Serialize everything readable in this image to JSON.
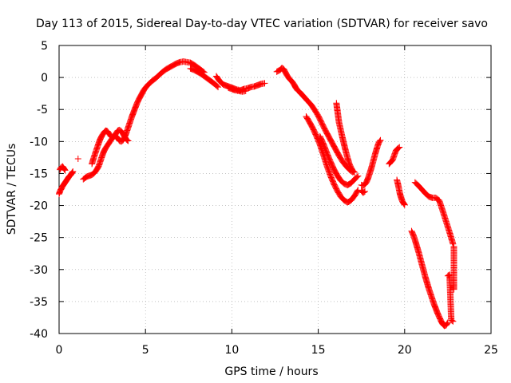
{
  "chart_data": {
    "type": "scatter",
    "title": "Day 113 of 2015, Sidereal Day-to-day VTEC variation (SDTVAR) for receiver savo",
    "xlabel": "GPS time / hours",
    "ylabel": "SDTVAR / TECUs",
    "xlim": [
      0,
      25
    ],
    "ylim": [
      -40,
      5
    ],
    "xticks": [
      0,
      5,
      10,
      15,
      20,
      25
    ],
    "yticks": [
      5,
      0,
      -5,
      -10,
      -15,
      -20,
      -25,
      -30,
      -35,
      -40
    ],
    "grid": true,
    "marker": "+",
    "color": "#ff0000",
    "series": [
      {
        "x": [
          0.0,
          0.05,
          0.1,
          0.15,
          0.2,
          0.25,
          0.3,
          0.35,
          0.4,
          0.45,
          0.5,
          0.55,
          0.6,
          0.65,
          0.7,
          0.75,
          0.8
        ],
        "y": [
          -18.2,
          -17.8,
          -17.5,
          -17.3,
          -17.0,
          -16.8,
          -16.6,
          -16.4,
          -16.2,
          -16.0,
          -15.8,
          -15.6,
          -15.4,
          -15.3,
          -15.1,
          -14.9,
          -14.7
        ]
      },
      {
        "x": [
          0.05,
          0.1,
          0.15,
          0.2,
          0.25,
          0.3,
          0.35
        ],
        "y": [
          -14.4,
          -14.1,
          -14.0,
          -13.9,
          -14.1,
          -14.3,
          -14.5
        ]
      },
      {
        "x": [
          1.1
        ],
        "y": [
          -12.7
        ]
      },
      {
        "x": [
          1.4,
          1.5,
          1.6,
          1.7,
          1.8,
          1.9,
          2.0,
          2.1,
          2.2,
          2.3,
          2.4,
          2.5,
          2.6,
          2.7,
          2.8,
          2.9,
          3.0,
          3.1,
          3.2,
          3.3,
          3.4,
          3.5,
          3.6,
          3.7,
          3.8,
          3.9,
          4.0,
          4.1,
          4.2,
          4.3,
          4.4,
          4.5,
          4.6,
          4.7,
          4.8,
          4.9,
          5.0,
          5.2,
          5.4,
          5.6,
          5.8,
          6.0,
          6.2,
          6.4,
          6.6,
          6.8,
          7.0,
          7.2,
          7.4,
          7.6,
          7.8,
          8.0,
          8.2,
          8.4
        ],
        "y": [
          -15.9,
          -15.7,
          -15.5,
          -15.4,
          -15.3,
          -15.2,
          -15.0,
          -14.7,
          -14.3,
          -13.8,
          -13.0,
          -12.2,
          -11.5,
          -11.0,
          -10.6,
          -10.2,
          -9.8,
          -9.4,
          -9.1,
          -9.2,
          -9.5,
          -9.9,
          -10.0,
          -9.8,
          -9.3,
          -8.6,
          -7.8,
          -7.0,
          -6.2,
          -5.5,
          -4.8,
          -4.1,
          -3.5,
          -3.0,
          -2.5,
          -2.0,
          -1.6,
          -1.0,
          -0.5,
          -0.1,
          0.4,
          0.9,
          1.3,
          1.6,
          1.9,
          2.2,
          2.4,
          2.5,
          2.4,
          2.3,
          2.0,
          1.6,
          1.2,
          0.8
        ]
      },
      {
        "x": [
          1.9,
          2.0,
          2.1,
          2.2,
          2.3,
          2.4,
          2.5,
          2.6,
          2.7,
          2.8,
          2.9,
          3.0,
          3.1,
          3.2,
          3.3,
          3.4,
          3.5,
          3.6,
          3.7,
          3.8,
          3.9,
          4.0
        ],
        "y": [
          -13.5,
          -12.6,
          -11.8,
          -11.0,
          -10.2,
          -9.5,
          -9.0,
          -8.6,
          -8.3,
          -8.4,
          -8.8,
          -9.2,
          -9.4,
          -9.2,
          -8.7,
          -8.3,
          -8.2,
          -8.4,
          -8.8,
          -9.3,
          -9.7,
          -9.9
        ]
      },
      {
        "x": [
          7.6,
          7.8,
          8.0,
          8.2,
          8.4,
          8.6,
          8.8,
          9.0,
          9.2
        ],
        "y": [
          1.4,
          1.2,
          0.9,
          0.6,
          0.2,
          -0.2,
          -0.6,
          -1.0,
          -1.5
        ]
      },
      {
        "x": [
          9.1,
          9.3,
          9.5,
          9.7,
          9.9,
          10.1,
          10.3,
          10.5,
          10.7,
          10.9,
          11.1,
          11.3,
          11.5,
          11.7,
          11.9
        ],
        "y": [
          0.2,
          -0.6,
          -1.1,
          -1.3,
          -1.5,
          -1.7,
          -1.9,
          -2.0,
          -1.8,
          -1.7,
          -1.5,
          -1.4,
          -1.2,
          -1.0,
          -0.9
        ]
      },
      {
        "x": [
          9.8,
          10.0,
          10.2,
          10.4,
          10.6,
          10.8
        ],
        "y": [
          -1.6,
          -1.8,
          -2.0,
          -2.1,
          -2.2,
          -2.1
        ]
      },
      {
        "x": [
          12.6,
          12.8,
          12.9,
          13.0,
          13.1,
          13.2,
          13.3,
          13.4,
          13.5,
          13.6,
          13.7,
          13.8,
          13.9,
          14.0,
          14.1,
          14.2,
          14.4,
          14.6,
          14.8,
          15.0,
          15.2,
          15.4,
          15.6,
          15.8,
          16.0,
          16.2,
          16.4,
          16.6,
          16.8,
          17.0
        ],
        "y": [
          0.9,
          1.2,
          1.5,
          1.3,
          0.8,
          0.3,
          -0.1,
          -0.4,
          -0.7,
          -1.1,
          -1.6,
          -2.0,
          -2.2,
          -2.5,
          -2.8,
          -3.1,
          -3.7,
          -4.3,
          -5.1,
          -6.0,
          -7.1,
          -8.2,
          -9.2,
          -10.2,
          -11.2,
          -12.2,
          -13.1,
          -13.8,
          -14.4,
          -14.8
        ]
      },
      {
        "x": [
          14.3,
          14.5,
          14.7,
          14.9,
          15.1,
          15.3,
          15.5,
          15.7,
          15.9,
          16.1,
          16.3,
          16.5,
          16.7,
          16.9,
          17.1,
          17.3
        ],
        "y": [
          -6.1,
          -7.0,
          -8.0,
          -9.2,
          -10.5,
          -12.1,
          -13.8,
          -15.3,
          -16.6,
          -17.7,
          -18.6,
          -19.2,
          -19.5,
          -19.2,
          -18.5,
          -17.6
        ]
      },
      {
        "x": [
          15.1,
          15.3,
          15.5,
          15.7,
          15.9,
          16.1,
          16.3,
          16.5,
          16.7,
          16.9,
          17.1,
          17.3
        ],
        "y": [
          -9.2,
          -10.4,
          -11.8,
          -13.1,
          -14.3,
          -15.3,
          -16.1,
          -16.6,
          -16.8,
          -16.5,
          -15.9,
          -15.4
        ]
      },
      {
        "x": [
          16.05,
          16.1,
          16.15,
          16.2,
          16.3,
          16.4,
          16.5,
          16.6,
          16.7,
          16.8,
          16.9,
          17.0,
          17.1
        ],
        "y": [
          -4.0,
          -5.0,
          -6.0,
          -7.0,
          -8.2,
          -9.4,
          -10.5,
          -11.6,
          -12.6,
          -13.5,
          -14.1,
          -14.6,
          -14.8
        ]
      },
      {
        "x": [
          17.5,
          17.6,
          17.7,
          17.8,
          17.9,
          18.0,
          18.1,
          18.2,
          18.3,
          18.4,
          18.5,
          18.6
        ],
        "y": [
          -16.8,
          -16.9,
          -16.7,
          -16.3,
          -15.6,
          -14.8,
          -13.9,
          -12.9,
          -11.9,
          -11.0,
          -10.2,
          -9.8
        ]
      },
      {
        "x": [
          17.5,
          17.6,
          17.7
        ],
        "y": [
          -17.7,
          -18.0,
          -17.8
        ]
      },
      {
        "x": [
          19.1,
          19.2,
          19.3,
          19.5,
          19.6,
          19.7
        ],
        "y": [
          -13.5,
          -13.2,
          -12.9,
          -11.4,
          -11.1,
          -10.9
        ]
      },
      {
        "x": [
          19.55,
          19.6,
          19.65,
          19.7,
          19.75,
          19.8,
          19.85,
          19.9,
          19.95,
          20.0
        ],
        "y": [
          -16.0,
          -16.5,
          -17.1,
          -17.8,
          -18.4,
          -18.8,
          -19.2,
          -19.5,
          -19.7,
          -19.9
        ]
      },
      {
        "x": [
          20.4,
          20.5,
          20.6,
          20.7,
          20.8,
          20.9,
          21.0,
          21.1,
          21.2,
          21.3,
          21.4,
          21.5,
          21.6,
          21.7,
          21.8,
          21.9,
          22.0,
          22.1,
          22.2,
          22.3,
          22.4,
          22.5
        ],
        "y": [
          -24.0,
          -24.6,
          -25.4,
          -26.3,
          -27.2,
          -28.2,
          -29.2,
          -30.2,
          -31.2,
          -32.1,
          -33.0,
          -33.8,
          -34.6,
          -35.4,
          -36.1,
          -36.8,
          -37.4,
          -38.0,
          -38.5,
          -38.8,
          -38.7,
          -38.3
        ]
      },
      {
        "x": [
          20.6,
          20.8,
          21.0,
          21.2,
          21.4,
          21.6,
          21.8,
          22.0,
          22.2,
          22.4,
          22.6,
          22.8
        ],
        "y": [
          -16.4,
          -16.9,
          -17.5,
          -18.1,
          -18.6,
          -18.8,
          -18.8,
          -19.2,
          -20.8,
          -22.5,
          -24.2,
          -26.0
        ]
      },
      {
        "x": [
          22.5,
          22.6,
          22.7,
          22.8
        ],
        "y": [
          -31.0,
          -30.8,
          -37.9,
          -38.1
        ]
      },
      {
        "x": [
          22.85,
          22.85,
          22.85
        ],
        "y": [
          -26.4,
          -32.1,
          -33.1
        ]
      }
    ]
  }
}
